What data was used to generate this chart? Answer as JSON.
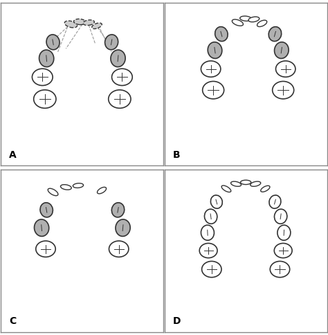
{
  "figsize": [
    4.74,
    4.84
  ],
  "dpi": 100,
  "background": "#ffffff",
  "border_color": "#888888",
  "panels": [
    "A",
    "B",
    "C",
    "D"
  ],
  "tooth_outline_color": "#333333",
  "tooth_gray_fill": "#b0b0b0",
  "tooth_white_fill": "#ffffff",
  "dashed_line_color": "#888888"
}
